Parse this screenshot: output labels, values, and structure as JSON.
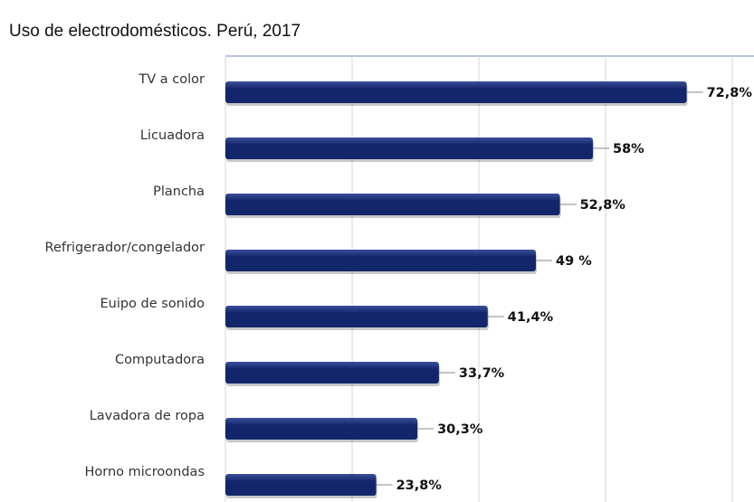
{
  "chart_data": {
    "type": "bar",
    "orientation": "horizontal",
    "title": "Uso de electrodomésticos. Perú, 2017",
    "categories": [
      "TV a color",
      "Licuadora",
      "Plancha",
      "Refrigerador/congelador",
      "Euipo de sonido",
      "Computadora",
      "Lavadora de ropa",
      "Horno microondas"
    ],
    "values": [
      72.8,
      58,
      52.8,
      49,
      41.4,
      33.7,
      30.3,
      23.8
    ],
    "value_labels": [
      "72,8%",
      "58%",
      "52,8%",
      "49 %",
      "41,4%",
      "33,7%",
      "30,3%",
      "23,8%"
    ],
    "xlim": [
      0,
      80
    ],
    "grid": true,
    "legend": "none",
    "bar_color": "#13266b",
    "bar_highlight": "#3a4f9a",
    "grid_color": "#d6d6d6",
    "top_border_color": "#9fb1d3"
  }
}
